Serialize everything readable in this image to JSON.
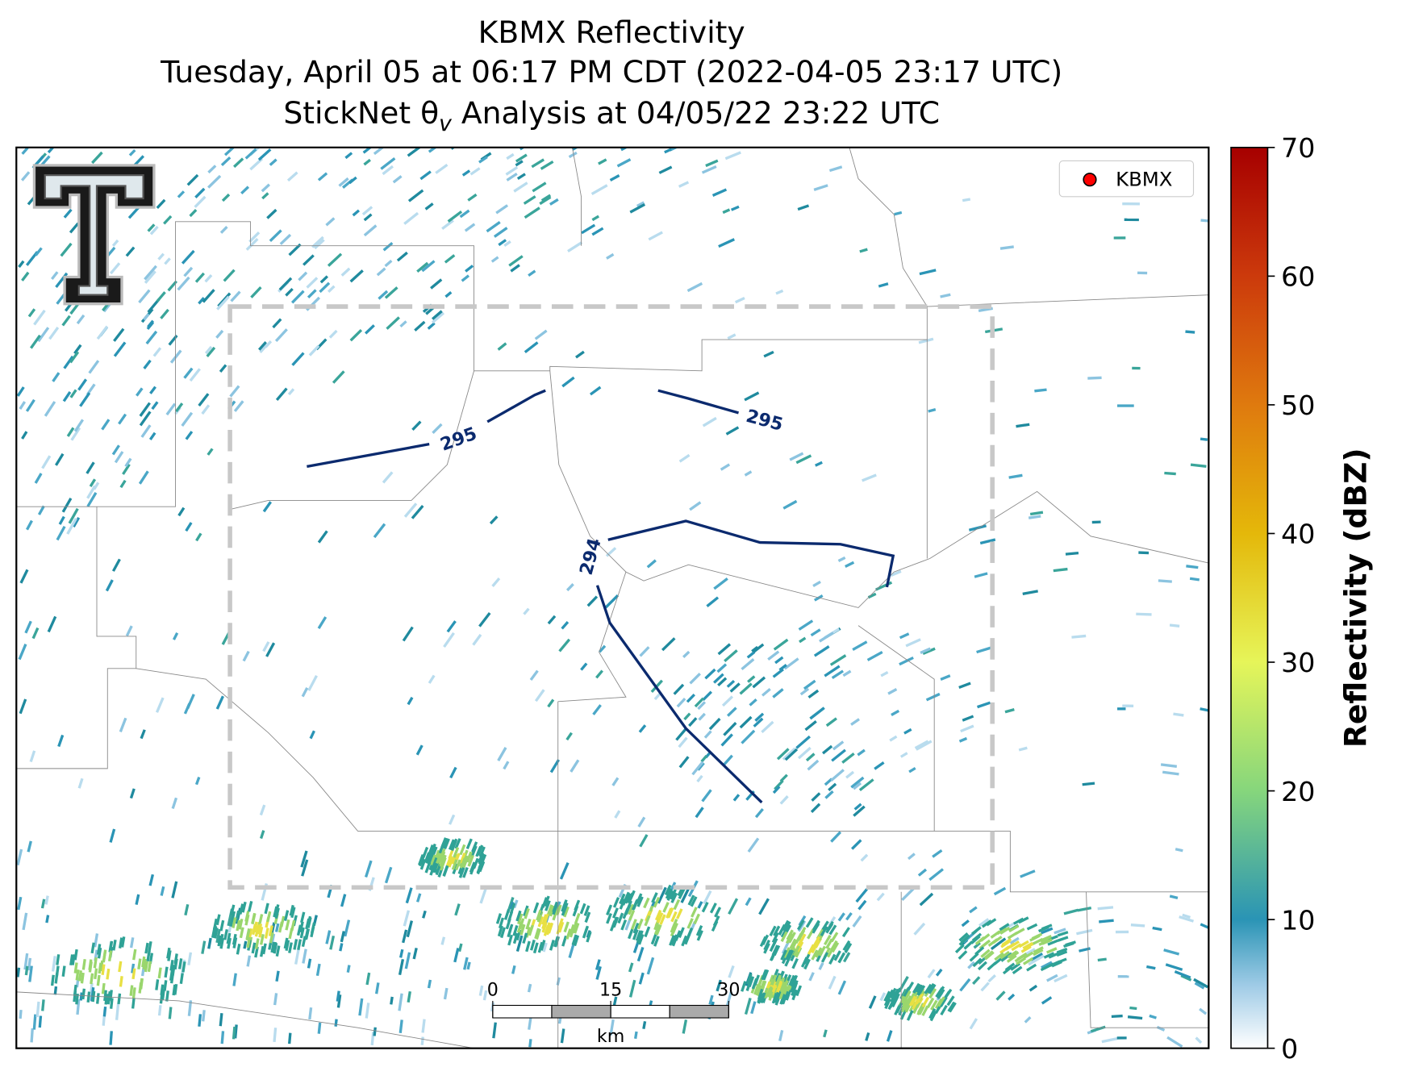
{
  "title": {
    "line1": "KBMX Reflectivity",
    "line2": "Tuesday, April 05 at 06:17 PM CDT (2022-04-05 23:17 UTC)",
    "line3_before": "StickNet θ",
    "line3_sub": "v",
    "line3_after": " Analysis at 04/05/22 23:22 UTC"
  },
  "colorbar": {
    "label": "Reflectivity (dBZ)",
    "lim": [
      0,
      70
    ],
    "ticks": [
      0,
      10,
      20,
      30,
      40,
      50,
      60,
      70
    ]
  },
  "legend": {
    "label": "KBMX",
    "color": "#ff0000"
  },
  "scale_bar": {
    "ticks": [
      0,
      15,
      30
    ],
    "unit": "km"
  },
  "contours": [
    {
      "value": 295
    },
    {
      "value": 295
    },
    {
      "value": 294
    }
  ]
}
